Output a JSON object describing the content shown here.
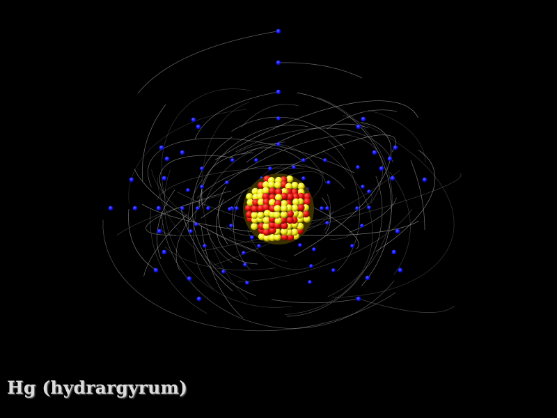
{
  "caption": "Hg (hydrargyrum)",
  "colors": {
    "background": "#000000",
    "electron": "#1414ff",
    "orbit_trail": "#b4b4b4",
    "proton": "#e81010",
    "neutron": "#f5f01a",
    "caption_text": "#dcdcdc"
  },
  "scene": {
    "element_symbol": "Hg",
    "element_name": "hydrargyrum",
    "electron_count": 80,
    "nucleus": {
      "protons": 80,
      "neutrons": 121
    }
  }
}
